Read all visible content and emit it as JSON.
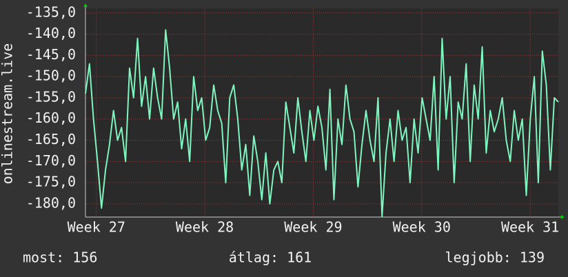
{
  "chart_data": {
    "type": "line",
    "y_label": "onlinestream.live",
    "color": "#7ff5bf",
    "grid": true,
    "ylim": [
      -183.1,
      -133.9
    ],
    "yticks": [
      {
        "value": -135,
        "label": "-135,0"
      },
      {
        "value": -140,
        "label": "-140,0"
      },
      {
        "value": -145,
        "label": "-145,0"
      },
      {
        "value": -150,
        "label": "-150,0"
      },
      {
        "value": -155,
        "label": "-155,0"
      },
      {
        "value": -160,
        "label": "-160,0"
      },
      {
        "value": -165,
        "label": "-165,0"
      },
      {
        "value": -170,
        "label": "-170,0"
      },
      {
        "value": -175,
        "label": "-175,0"
      },
      {
        "value": -180,
        "label": "-180,0"
      }
    ],
    "xlim": [
      26.9,
      31.26
    ],
    "xticks": [
      {
        "value": 27,
        "label": "Week 27"
      },
      {
        "value": 28,
        "label": "Week 28"
      },
      {
        "value": 29,
        "label": "Week 29"
      },
      {
        "value": 30,
        "label": "Week 30"
      },
      {
        "value": 31,
        "label": "Week 31"
      }
    ],
    "values": [
      -154,
      -147,
      -160,
      -170,
      -181,
      -172,
      -166,
      -158,
      -165,
      -162,
      -170,
      -148,
      -155,
      -141,
      -157,
      -150,
      -160,
      -148,
      -155,
      -160,
      -139,
      -148,
      -160,
      -156,
      -167,
      -160,
      -170,
      -150,
      -158,
      -155,
      -165,
      -162,
      -152,
      -158,
      -161,
      -175,
      -155,
      -152,
      -160,
      -172,
      -166,
      -178,
      -164,
      -170,
      -179,
      -168,
      -180,
      -172,
      -170,
      -175,
      -156,
      -162,
      -168,
      -155,
      -163,
      -170,
      -158,
      -165,
      -157,
      -162,
      -172,
      -153,
      -179,
      -160,
      -166,
      -152,
      -160,
      -163,
      -176,
      -166,
      -158,
      -165,
      -170,
      -155,
      -183,
      -168,
      -160,
      -170,
      -158,
      -165,
      -162,
      -175,
      -160,
      -168,
      -155,
      -160,
      -165,
      -150,
      -172,
      -141,
      -160,
      -150,
      -175,
      -156,
      -160,
      -147,
      -170,
      -152,
      -160,
      -143,
      -168,
      -158,
      -163,
      -160,
      -155,
      -165,
      -170,
      -158,
      -165,
      -160,
      -178,
      -160,
      -150,
      -175,
      -144,
      -152,
      -172,
      -155,
      -156
    ],
    "footer": [
      "most: 156",
      "átlag: 161",
      "legjobb: 139"
    ]
  }
}
